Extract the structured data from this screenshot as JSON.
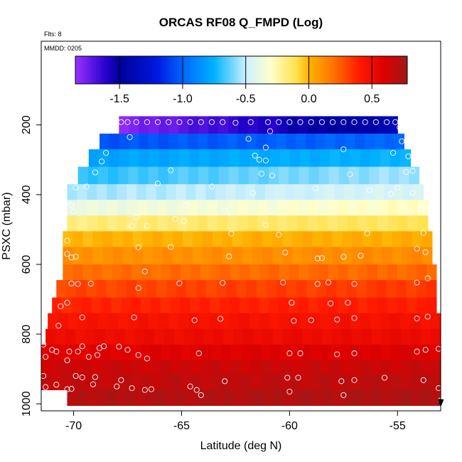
{
  "chart_data": {
    "type": "heatmap",
    "title": "ORCAS RF08 Q_FMPD (Log)",
    "flts_label": "Flts: 8",
    "mmdd_label": "MMDD: 0205",
    "xlabel": "Latitude (deg N)",
    "ylabel": "PSXC (mbar)",
    "xlim": [
      -71.5,
      -53
    ],
    "ylim": [
      1020,
      -40
    ],
    "x_ticks": [
      -70,
      -65,
      -60,
      -55
    ],
    "y_ticks": [
      200,
      400,
      600,
      800,
      1000
    ],
    "colorbar": {
      "range": [
        -1.85,
        0.78
      ],
      "ticks": [
        -1.5,
        -1.0,
        -0.5,
        0.0,
        0.5
      ],
      "tick_labels": [
        "-1.5",
        "-1.0",
        "-0.5",
        "0.0",
        "0.5"
      ],
      "stops": [
        {
          "v": -1.85,
          "c": "#9b30ff"
        },
        {
          "v": -1.6,
          "c": "#2200cc"
        },
        {
          "v": -1.5,
          "c": "#000099"
        },
        {
          "v": -1.2,
          "c": "#0018e0"
        },
        {
          "v": -1.0,
          "c": "#0066ff"
        },
        {
          "v": -0.75,
          "c": "#00b2ff"
        },
        {
          "v": -0.5,
          "c": "#ccf0ff"
        },
        {
          "v": -0.3,
          "c": "#ffffcc"
        },
        {
          "v": -0.1,
          "c": "#ffe14d"
        },
        {
          "v": 0.0,
          "c": "#ffb300"
        },
        {
          "v": 0.2,
          "c": "#ff7000"
        },
        {
          "v": 0.4,
          "c": "#ff1a00"
        },
        {
          "v": 0.6,
          "c": "#dd0000"
        },
        {
          "v": 0.78,
          "c": "#a01818"
        }
      ]
    },
    "rows": [
      {
        "p0": 175,
        "p1": 225,
        "lat0": -67.9,
        "lat1": -55.0,
        "v": [
          -1.8,
          -1.4
        ]
      },
      {
        "p0": 225,
        "p1": 270,
        "lat0": -68.8,
        "lat1": -54.7,
        "v": [
          -1.05,
          -1.0
        ]
      },
      {
        "p0": 270,
        "p1": 320,
        "lat0": -69.3,
        "lat1": -54.4,
        "v": [
          -0.8,
          -0.75
        ]
      },
      {
        "p0": 320,
        "p1": 370,
        "lat0": -69.8,
        "lat1": -54.0,
        "v": [
          -0.7,
          -0.55
        ]
      },
      {
        "p0": 370,
        "p1": 415,
        "lat0": -70.3,
        "lat1": -53.8,
        "v": [
          -0.55,
          -0.45
        ]
      },
      {
        "p0": 415,
        "p1": 460,
        "lat0": -70.3,
        "lat1": -53.6,
        "v": [
          -0.38,
          -0.28
        ]
      },
      {
        "p0": 460,
        "p1": 505,
        "lat0": -70.3,
        "lat1": -53.6,
        "v": [
          -0.18,
          -0.12
        ]
      },
      {
        "p0": 505,
        "p1": 550,
        "lat0": -70.5,
        "lat1": -53.4,
        "v": [
          0.0,
          0.02
        ]
      },
      {
        "p0": 550,
        "p1": 600,
        "lat0": -70.5,
        "lat1": -53.4,
        "v": [
          0.1,
          0.12
        ]
      },
      {
        "p0": 600,
        "p1": 645,
        "lat0": -70.5,
        "lat1": -53.2,
        "v": [
          0.2,
          0.22
        ]
      },
      {
        "p0": 645,
        "p1": 695,
        "lat0": -70.8,
        "lat1": -53.2,
        "v": [
          0.3,
          0.33
        ]
      },
      {
        "p0": 695,
        "p1": 740,
        "lat0": -71.0,
        "lat1": -53.2,
        "v": [
          0.38,
          0.4
        ]
      },
      {
        "p0": 740,
        "p1": 785,
        "lat0": -71.2,
        "lat1": -53.0,
        "v": [
          0.45,
          0.47
        ]
      },
      {
        "p0": 785,
        "p1": 830,
        "lat0": -71.3,
        "lat1": -53.0,
        "v": [
          0.5,
          0.52
        ]
      },
      {
        "p0": 830,
        "p1": 875,
        "lat0": -71.5,
        "lat1": -53.0,
        "v": [
          0.58,
          0.6
        ]
      },
      {
        "p0": 875,
        "p1": 915,
        "lat0": -71.5,
        "lat1": -53.0,
        "v": [
          0.65,
          0.66
        ]
      },
      {
        "p0": 915,
        "p1": 960,
        "lat0": -71.5,
        "lat1": -53.0,
        "v": [
          0.68,
          0.7
        ]
      },
      {
        "p0": 960,
        "p1": 1005,
        "lat0": -70.3,
        "lat1": -53.0,
        "v": [
          0.72,
          0.74
        ]
      }
    ],
    "points": [
      [
        -67.8,
        192
      ],
      [
        -67.5,
        192
      ],
      [
        -67.1,
        192
      ],
      [
        -66.6,
        192
      ],
      [
        -66.1,
        192
      ],
      [
        -65.6,
        192
      ],
      [
        -65.1,
        192
      ],
      [
        -64.6,
        192
      ],
      [
        -64.1,
        192
      ],
      [
        -63.6,
        192
      ],
      [
        -63.1,
        192
      ],
      [
        -62.5,
        194
      ],
      [
        -61.8,
        192
      ],
      [
        -61.0,
        192
      ],
      [
        -60.5,
        192
      ],
      [
        -60.0,
        192
      ],
      [
        -59.5,
        192
      ],
      [
        -59.0,
        192
      ],
      [
        -58.5,
        192
      ],
      [
        -58.0,
        192
      ],
      [
        -57.5,
        192
      ],
      [
        -57.0,
        192
      ],
      [
        -56.5,
        192
      ],
      [
        -56.0,
        192
      ],
      [
        -55.5,
        192
      ],
      [
        -55.1,
        192
      ],
      [
        -54.9,
        207
      ],
      [
        -67.4,
        235
      ],
      [
        -61.9,
        240
      ],
      [
        -60.9,
        218
      ],
      [
        -54.8,
        247
      ],
      [
        -68.5,
        280
      ],
      [
        -61.1,
        265
      ],
      [
        -61.6,
        288
      ],
      [
        -61.4,
        300
      ],
      [
        -61.1,
        302
      ],
      [
        -57.5,
        270
      ],
      [
        -55.2,
        280
      ],
      [
        -54.5,
        290
      ],
      [
        -68.7,
        305
      ],
      [
        -69.0,
        336
      ],
      [
        -65.5,
        330
      ],
      [
        -61.3,
        340
      ],
      [
        -60.8,
        345
      ],
      [
        -57.2,
        342
      ],
      [
        -54.6,
        335
      ],
      [
        -54.3,
        332
      ],
      [
        -69.9,
        380
      ],
      [
        -69.4,
        377
      ],
      [
        -66.1,
        368
      ],
      [
        -63.6,
        377
      ],
      [
        -61.7,
        395
      ],
      [
        -58.8,
        382
      ],
      [
        -56.3,
        387
      ],
      [
        -55.3,
        398
      ],
      [
        -55.0,
        380
      ],
      [
        -54.3,
        395
      ],
      [
        -70.1,
        430
      ],
      [
        -70.0,
        448
      ],
      [
        -64.8,
        430
      ],
      [
        -63.0,
        445
      ],
      [
        -60.9,
        448
      ],
      [
        -54.4,
        448
      ],
      [
        -53.9,
        440
      ],
      [
        -65.3,
        470
      ],
      [
        -66.6,
        490
      ],
      [
        -67.3,
        490
      ],
      [
        -67.1,
        465
      ],
      [
        -64.9,
        475
      ],
      [
        -61.1,
        487
      ],
      [
        -70.3,
        532
      ],
      [
        -60.5,
        515
      ],
      [
        -62.7,
        512
      ],
      [
        -56.4,
        511
      ],
      [
        -53.8,
        510
      ],
      [
        -70.3,
        570
      ],
      [
        -70.1,
        580
      ],
      [
        -69.9,
        578
      ],
      [
        -67.0,
        551
      ],
      [
        -65.5,
        550
      ],
      [
        -62.8,
        577
      ],
      [
        -60.2,
        566
      ],
      [
        -58.7,
        583
      ],
      [
        -58.5,
        582
      ],
      [
        -57.5,
        578
      ],
      [
        -56.7,
        575
      ],
      [
        -54.1,
        555
      ],
      [
        -53.7,
        565
      ],
      [
        -66.7,
        620
      ],
      [
        -70.1,
        655
      ],
      [
        -69.8,
        656
      ],
      [
        -69.2,
        655
      ],
      [
        -65.1,
        654
      ],
      [
        -63.1,
        653
      ],
      [
        -60.3,
        652
      ],
      [
        -58.7,
        656
      ],
      [
        -58.2,
        652
      ],
      [
        -57.0,
        656
      ],
      [
        -54.1,
        652
      ],
      [
        -53.6,
        640
      ],
      [
        -67.0,
        668
      ],
      [
        -70.3,
        710
      ],
      [
        -70.6,
        720
      ],
      [
        -59.9,
        710
      ],
      [
        -58.1,
        712
      ],
      [
        -57.3,
        710
      ],
      [
        -69.6,
        752
      ],
      [
        -67.2,
        752
      ],
      [
        -64.4,
        760
      ],
      [
        -63.2,
        756
      ],
      [
        -59.8,
        762
      ],
      [
        -59.0,
        760
      ],
      [
        -57.8,
        758
      ],
      [
        -57.0,
        754
      ],
      [
        -54.1,
        755
      ],
      [
        -53.6,
        750
      ],
      [
        -70.7,
        776
      ],
      [
        -71.4,
        830
      ],
      [
        -71.0,
        845
      ],
      [
        -70.8,
        850
      ],
      [
        -70.2,
        850
      ],
      [
        -69.8,
        850
      ],
      [
        -69.6,
        835
      ],
      [
        -68.8,
        840
      ],
      [
        -68.6,
        835
      ],
      [
        -67.9,
        836
      ],
      [
        -67.5,
        845
      ],
      [
        -67.0,
        860
      ],
      [
        -66.6,
        870
      ],
      [
        -64.2,
        855
      ],
      [
        -60.0,
        855
      ],
      [
        -59.5,
        855
      ],
      [
        -57.8,
        858
      ],
      [
        -57.0,
        855
      ],
      [
        -54.1,
        850
      ],
      [
        -53.7,
        845
      ],
      [
        -53.1,
        842
      ],
      [
        -71.3,
        865
      ],
      [
        -70.3,
        875
      ],
      [
        -69.3,
        865
      ],
      [
        -68.9,
        860
      ],
      [
        -71.4,
        920
      ],
      [
        -69.9,
        920
      ],
      [
        -69.6,
        924
      ],
      [
        -69.0,
        923
      ],
      [
        -67.8,
        932
      ],
      [
        -64.3,
        960
      ],
      [
        -64.6,
        950
      ],
      [
        -63.0,
        935
      ],
      [
        -60.1,
        925
      ],
      [
        -59.6,
        925
      ],
      [
        -57.6,
        935
      ],
      [
        -57.0,
        932
      ],
      [
        -55.6,
        925
      ],
      [
        -53.8,
        932
      ],
      [
        -71.3,
        952
      ],
      [
        -70.8,
        945
      ],
      [
        -70.3,
        958
      ],
      [
        -70.1,
        957
      ],
      [
        -69.1,
        944
      ],
      [
        -68.0,
        950
      ],
      [
        -67.3,
        955
      ],
      [
        -66.7,
        960
      ],
      [
        -66.4,
        958
      ],
      [
        -64.1,
        975
      ],
      [
        -60.0,
        965
      ],
      [
        -57.5,
        975
      ],
      [
        -53.1,
        955
      ],
      [
        -53.0,
        990
      ]
    ],
    "marker_triangle": {
      "lat": -53.0,
      "p": 997
    }
  }
}
